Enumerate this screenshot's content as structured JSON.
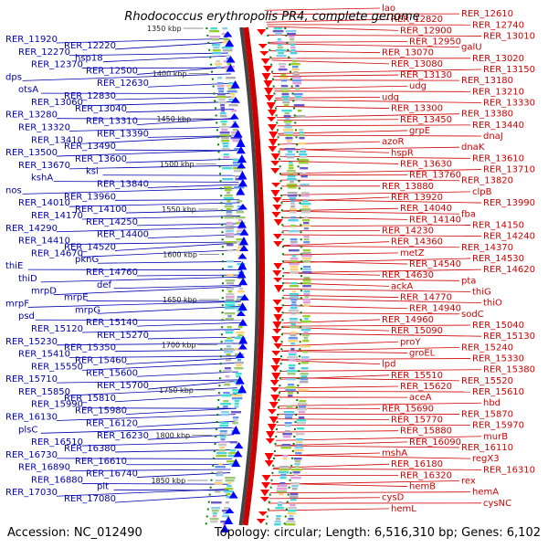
{
  "title": "Rhodococcus erythropolis PR4, complete genome",
  "footer": {
    "accession": "Accession: NC_012490",
    "info": "Topology: circular; Length: 6,516,310 bp; Genes: 6,102"
  },
  "colors": {
    "forward_strand": "#ff0000",
    "reverse_strand": "#0000ff",
    "left_label": "#0000b0",
    "right_label": "#d00000",
    "backbone_outer": "#cc0000",
    "backbone_inner": "#444444",
    "ticks": "#008000"
  },
  "kbp_markers": [
    "1350 kbp",
    "1400 kbp",
    "1450 kbp",
    "1500 kbp",
    "1550 kbp",
    "1600 kbp",
    "1650 kbp",
    "1700 kbp",
    "1750 kbp",
    "1800 kbp",
    "1850 kbp"
  ],
  "left_genes": [
    "RER_11920",
    "RER_12220",
    "RER_12270",
    "hsp18",
    "RER_12370",
    "RER_12500",
    "dps",
    "RER_12630",
    "otsA",
    "RER_12830",
    "RER_13060",
    "RER_13040",
    "RER_13280",
    "RER_13310",
    "RER_13320",
    "RER_13390",
    "RER_13410",
    "RER_13490",
    "RER_13500",
    "RER_13600",
    "RER_13670",
    "ksi",
    "kshA",
    "RER_13840",
    "nos",
    "RER_13960",
    "RER_14010",
    "RER_14100",
    "RER_14170",
    "RER_14250",
    "RER_14290",
    "RER_14400",
    "RER_14410",
    "RER_14520",
    "RER_14670",
    "pknG",
    "thiE",
    "RER_14760",
    "thiD",
    "def",
    "mrpD",
    "mrpE",
    "mrpF",
    "mrpG",
    "psd",
    "RER_15140",
    "RER_15120",
    "RER_15270",
    "RER_15230",
    "RER_15350",
    "RER_15410",
    "RER_15460",
    "RER_15550",
    "RER_15600",
    "RER_15710",
    "RER_15700",
    "RER_15850",
    "RER_15810",
    "RER_15990",
    "RER_15980",
    "RER_16130",
    "RER_16120",
    "plsC",
    "RER_16230",
    "RER_16510",
    "RER_16380",
    "RER_16730",
    "RER_16610",
    "RER_16890",
    "RER_16740",
    "RER_16880",
    "pit",
    "RER_17030",
    "RER_17080"
  ],
  "right_genes": [
    "lao",
    "RER_12610",
    "RER_12820",
    "RER_12740",
    "RER_12900",
    "RER_13010",
    "RER_12950",
    "galU",
    "RER_13070",
    "RER_13020",
    "RER_13080",
    "RER_13150",
    "RER_13130",
    "RER_13180",
    "udg",
    "RER_13210",
    "udg",
    "RER_13330",
    "RER_13300",
    "RER_13380",
    "RER_13450",
    "RER_13440",
    "grpE",
    "dnaJ",
    "azoR",
    "dnaK",
    "hspR",
    "RER_13610",
    "RER_13630",
    "RER_13710",
    "RER_13760",
    "RER_13820",
    "RER_13880",
    "clpB",
    "RER_13920",
    "RER_13990",
    "RER_14040",
    "fba",
    "RER_14140",
    "RER_14150",
    "RER_14230",
    "RER_14240",
    "RER_14360",
    "RER_14370",
    "metZ",
    "RER_14530",
    "RER_14540",
    "RER_14620",
    "RER_14630",
    "pta",
    "ackA",
    "thiG",
    "RER_14770",
    "thiO",
    "RER_14940",
    "sodC",
    "RER_14960",
    "RER_15040",
    "RER_15090",
    "RER_15130",
    "proY",
    "RER_15240",
    "groEL",
    "RER_15330",
    "lpd",
    "RER_15380",
    "RER_15510",
    "RER_15520",
    "RER_15620",
    "RER_15610",
    "aceA",
    "hbd",
    "RER_15690",
    "RER_15870",
    "RER_15770",
    "RER_15970",
    "RER_15880",
    "murB",
    "RER_16090",
    "RER_16110",
    "mshA",
    "regX3",
    "RER_16180",
    "RER_16310",
    "RER_16320",
    "rex",
    "hemB",
    "hemA",
    "cysD",
    "cysNC",
    "hemL"
  ]
}
